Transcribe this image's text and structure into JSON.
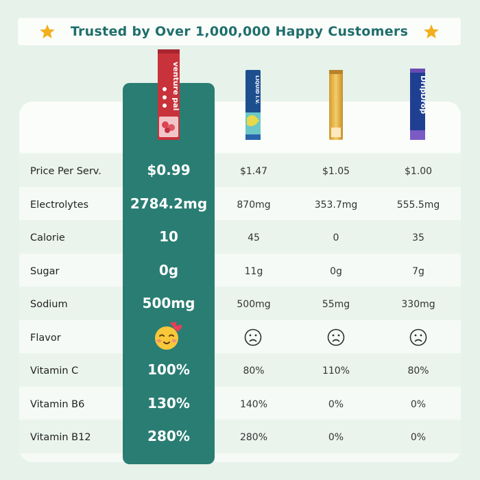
{
  "banner": {
    "title": "Trusted by Over 1,000,000 Happy Customers",
    "star_color": "#f2b020"
  },
  "colors": {
    "highlight": "#2a7d73",
    "title": "#1f6e6b"
  },
  "products": [
    {
      "name": "venture pal",
      "icon": "red-stick-pack"
    },
    {
      "name": "LIQUID I.V.",
      "icon": "blue-stick-pack"
    },
    {
      "name": "",
      "icon": "gold-stick-pack"
    },
    {
      "name": "DripDrop",
      "icon": "purple-stick-pack"
    }
  ],
  "rows": [
    {
      "label": "Price Per Serv.",
      "values": [
        "$0.99",
        "$1.47",
        "$1.05",
        "$1.00"
      ]
    },
    {
      "label": "Electrolytes",
      "values": [
        "2784.2mg",
        "870mg",
        "353.7mg",
        "555.5mg"
      ]
    },
    {
      "label": "Calorie",
      "values": [
        "10",
        "45",
        "0",
        "35"
      ]
    },
    {
      "label": "Sugar",
      "values": [
        "0g",
        "11g",
        "0g",
        "7g"
      ]
    },
    {
      "label": "Sodium",
      "values": [
        "500mg",
        "500mg",
        "55mg",
        "330mg"
      ]
    },
    {
      "label": "Flavor",
      "values": [
        "",
        "",
        "",
        ""
      ],
      "icons": [
        "in-love-face-icon",
        "frown-face-icon",
        "frown-face-icon",
        "frown-face-icon"
      ]
    },
    {
      "label": "Vitamin C",
      "values": [
        "100%",
        "80%",
        "110%",
        "80%"
      ]
    },
    {
      "label": "Vitamin B6",
      "values": [
        "130%",
        "140%",
        "0%",
        "0%"
      ]
    },
    {
      "label": "Vitamin B12",
      "values": [
        "280%",
        "280%",
        "0%",
        "0%"
      ]
    }
  ]
}
